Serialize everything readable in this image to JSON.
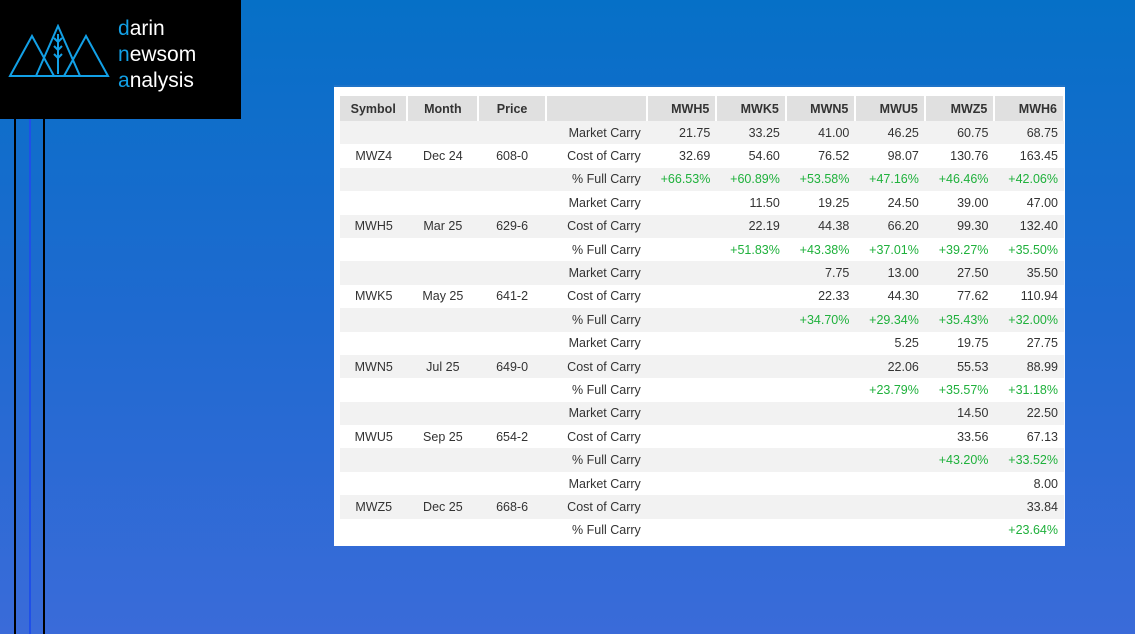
{
  "logo": {
    "line1": "darin",
    "line2": "newsom",
    "line3": "analysis"
  },
  "table": {
    "headers": [
      "Symbol",
      "Month",
      "Price",
      "",
      "MWH5",
      "MWK5",
      "MWN5",
      "MWU5",
      "MWZ5",
      "MWH6"
    ],
    "groups": [
      {
        "symbol": "MWZ4",
        "month": "Dec 24",
        "price": "608-0",
        "market": [
          "21.75",
          "33.25",
          "41.00",
          "46.25",
          "60.75",
          "68.75"
        ],
        "cost": [
          "32.69",
          "54.60",
          "76.52",
          "98.07",
          "130.76",
          "163.45"
        ],
        "pct": [
          "+66.53%",
          "+60.89%",
          "+53.58%",
          "+47.16%",
          "+46.46%",
          "+42.06%"
        ]
      },
      {
        "symbol": "MWH5",
        "month": "Mar 25",
        "price": "629-6",
        "market": [
          "",
          "11.50",
          "19.25",
          "24.50",
          "39.00",
          "47.00"
        ],
        "cost": [
          "",
          "22.19",
          "44.38",
          "66.20",
          "99.30",
          "132.40"
        ],
        "pct": [
          "",
          "+51.83%",
          "+43.38%",
          "+37.01%",
          "+39.27%",
          "+35.50%"
        ]
      },
      {
        "symbol": "MWK5",
        "month": "May 25",
        "price": "641-2",
        "market": [
          "",
          "",
          "7.75",
          "13.00",
          "27.50",
          "35.50"
        ],
        "cost": [
          "",
          "",
          "22.33",
          "44.30",
          "77.62",
          "110.94"
        ],
        "pct": [
          "",
          "",
          "+34.70%",
          "+29.34%",
          "+35.43%",
          "+32.00%"
        ]
      },
      {
        "symbol": "MWN5",
        "month": "Jul 25",
        "price": "649-0",
        "market": [
          "",
          "",
          "",
          "5.25",
          "19.75",
          "27.75"
        ],
        "cost": [
          "",
          "",
          "",
          "22.06",
          "55.53",
          "88.99"
        ],
        "pct": [
          "",
          "",
          "",
          "+23.79%",
          "+35.57%",
          "+31.18%"
        ]
      },
      {
        "symbol": "MWU5",
        "month": "Sep 25",
        "price": "654-2",
        "market": [
          "",
          "",
          "",
          "",
          "14.50",
          "22.50"
        ],
        "cost": [
          "",
          "",
          "",
          "",
          "33.56",
          "67.13"
        ],
        "pct": [
          "",
          "",
          "",
          "",
          "+43.20%",
          "+33.52%"
        ]
      },
      {
        "symbol": "MWZ5",
        "month": "Dec 25",
        "price": "668-6",
        "market": [
          "",
          "",
          "",
          "",
          "",
          "8.00"
        ],
        "cost": [
          "",
          "",
          "",
          "",
          "",
          "33.84"
        ],
        "pct": [
          "",
          "",
          "",
          "",
          "",
          "+23.64%"
        ]
      }
    ],
    "row_labels": {
      "market": "Market Carry",
      "cost": "Cost of Carry",
      "pct": "% Full Carry"
    }
  },
  "colors": {
    "positive": "#1fb13c",
    "accent": "#12a0e6"
  }
}
